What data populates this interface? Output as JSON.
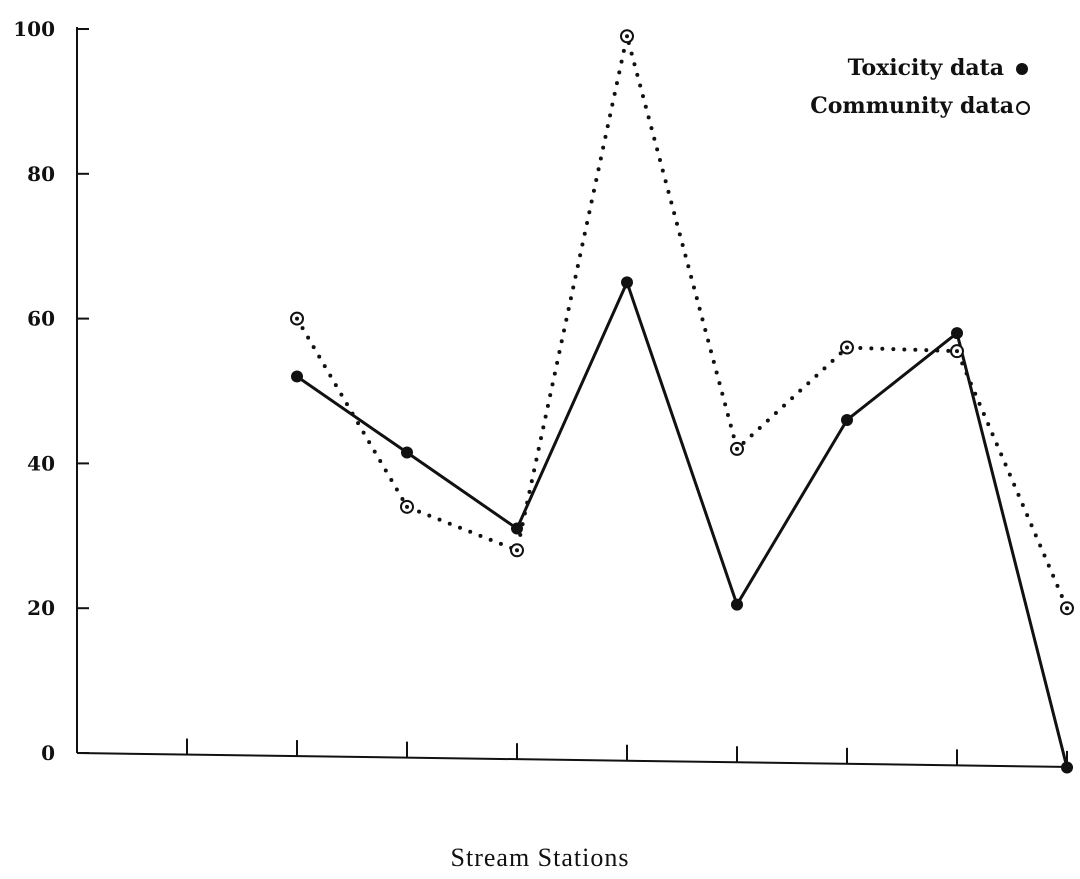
{
  "chart_data": {
    "type": "line",
    "title": "",
    "xlabel": "Stream   Stations",
    "ylabel": "",
    "ylim": [
      0,
      100
    ],
    "yticks": [
      "0",
      "20",
      "40",
      "60",
      "80",
      "100"
    ],
    "x": [
      1,
      2,
      3,
      4,
      5,
      6,
      7,
      8,
      9
    ],
    "xlim": [
      0,
      9
    ],
    "grid": false,
    "legend": "top-right",
    "series": [
      {
        "name": "Toxicity data",
        "marker": "filled-circle",
        "line_style": "solid",
        "color": "#111111",
        "points": [
          [
            2,
            52
          ],
          [
            3,
            41.5
          ],
          [
            4,
            31
          ],
          [
            5,
            65
          ],
          [
            6,
            20.5
          ],
          [
            7,
            46
          ],
          [
            8,
            58
          ],
          [
            9,
            -2
          ]
        ]
      },
      {
        "name": "Community data",
        "marker": "open-circle",
        "line_style": "dotted",
        "color": "#111111",
        "points": [
          [
            2,
            60
          ],
          [
            3,
            34
          ],
          [
            4,
            28
          ],
          [
            5,
            99
          ],
          [
            6,
            42
          ],
          [
            7,
            56
          ],
          [
            8,
            55.5
          ],
          [
            9,
            20
          ]
        ]
      }
    ]
  }
}
